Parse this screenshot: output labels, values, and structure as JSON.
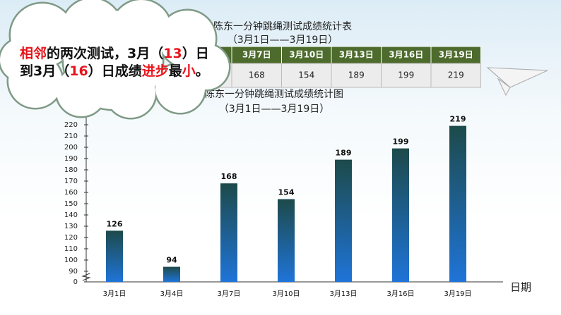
{
  "table": {
    "title": "陈东一分钟跳绳测试成绩统计表",
    "subtitle": "（3月1日——3月19日）",
    "header": [
      "3月7日",
      "3月10日",
      "3月13日",
      "3月16日",
      "3月19日"
    ],
    "values": [
      "168",
      "154",
      "189",
      "199",
      "219"
    ]
  },
  "callout": {
    "lines": [
      [
        {
          "text": "相邻",
          "color": "#e8141b"
        },
        {
          "text": "的两次测试，3月（",
          "color": "#111111"
        },
        {
          "text": "13",
          "color": "#e8141b"
        },
        {
          "text": "）日",
          "color": "#111111"
        }
      ],
      [
        {
          "text": "到3月（",
          "color": "#111111"
        },
        {
          "text": "16",
          "color": "#e8141b"
        },
        {
          "text": "）日成绩",
          "color": "#111111"
        },
        {
          "text": "进步",
          "color": "#e8141b"
        },
        {
          "text": "最",
          "color": "#111111"
        },
        {
          "text": "小",
          "color": "#e8141b"
        },
        {
          "text": "。",
          "color": "#111111"
        }
      ]
    ]
  },
  "chart_data": {
    "type": "bar",
    "title": "陈东一分钟跳绳测试成绩统计图",
    "subtitle": "（3月1日——3月19日）",
    "x_label": "日期",
    "categories": [
      "3月1日",
      "3月4日",
      "3月7日",
      "3月10日",
      "3月13日",
      "3月16日",
      "3月19日"
    ],
    "values": [
      126,
      94,
      168,
      154,
      189,
      199,
      219
    ],
    "color_top": "#1d4a4a",
    "color_bottom": "#1f74d8",
    "ylim": [
      0,
      225
    ],
    "ybreak": [
      0,
      85
    ],
    "yticks": [
      0,
      90,
      100,
      110,
      120,
      130,
      140,
      150,
      160,
      170,
      180,
      190,
      200,
      210,
      220
    ],
    "grid": false
  }
}
